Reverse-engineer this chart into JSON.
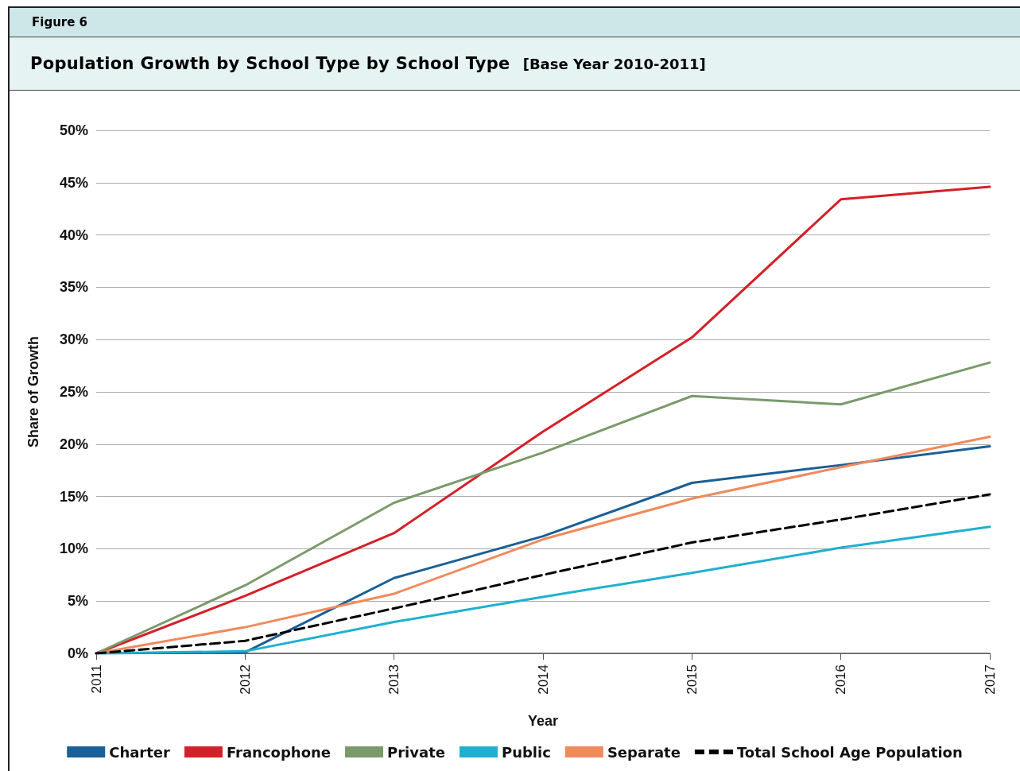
{
  "chart_data": {
    "type": "line",
    "title": "Population Growth by School Type by School Type",
    "subtitle": "[Base Year 2010-2011]",
    "annotations": [
      "Figure 6"
    ],
    "xlabel": "Year",
    "ylabel": "Share of Growth",
    "categories": [
      "2011",
      "2012",
      "2013",
      "2014",
      "2015",
      "2016",
      "2017"
    ],
    "series": [
      {
        "name": "Charter",
        "color": "#1a5f96",
        "values": [
          0,
          0.1,
          7.2,
          11.2,
          16.3,
          18.0,
          19.8
        ]
      },
      {
        "name": "Francophone",
        "color": "#d42028",
        "values": [
          0,
          5.5,
          11.5,
          21.2,
          30.2,
          43.4,
          44.6
        ]
      },
      {
        "name": "Private",
        "color": "#7b9a6b",
        "values": [
          0,
          6.5,
          14.4,
          19.2,
          24.6,
          23.8,
          27.8
        ]
      },
      {
        "name": "Public",
        "color": "#1fb0d0",
        "values": [
          0,
          0.2,
          3.0,
          5.4,
          7.7,
          10.1,
          12.1
        ]
      },
      {
        "name": "Separate",
        "color": "#f08a5d",
        "values": [
          0,
          2.5,
          5.7,
          10.9,
          14.8,
          17.8,
          20.7
        ]
      },
      {
        "name": "Total School Age Population",
        "color": "#000000",
        "line_style": "dashed",
        "values": [
          0,
          1.2,
          4.3,
          7.5,
          10.6,
          12.8,
          15.2
        ]
      }
    ],
    "ylim": [
      0,
      50
    ],
    "yticks": [
      {
        "value": 0,
        "label": "0%"
      },
      {
        "value": 5,
        "label": "5%"
      },
      {
        "value": 10,
        "label": "10%"
      },
      {
        "value": 15,
        "label": "15%"
      },
      {
        "value": 20,
        "label": "20%"
      },
      {
        "value": 25,
        "label": "25%"
      },
      {
        "value": 30,
        "label": "30%"
      },
      {
        "value": 35,
        "label": "35%"
      },
      {
        "value": 40,
        "label": "40%"
      },
      {
        "value": 45,
        "label": "45%"
      },
      {
        "value": 50,
        "label": "50%"
      }
    ],
    "grid": "y",
    "legend": "bottom",
    "marker": "none",
    "line_style": "solid"
  }
}
